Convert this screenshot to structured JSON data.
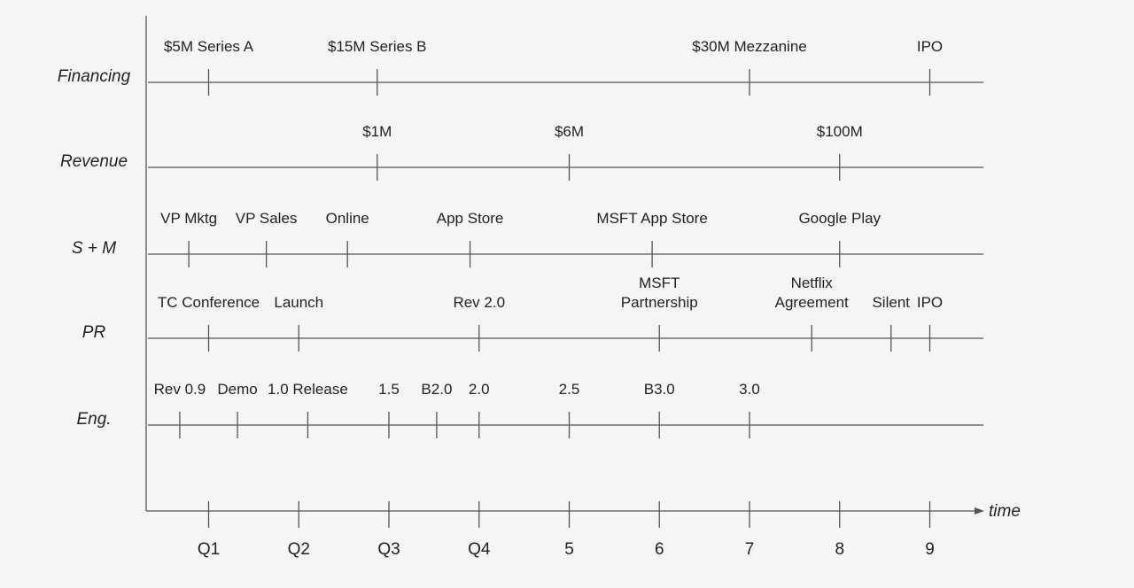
{
  "axis": {
    "title": "time",
    "ticks": [
      {
        "t": 1,
        "label": "Q1"
      },
      {
        "t": 2,
        "label": "Q2"
      },
      {
        "t": 3,
        "label": "Q3"
      },
      {
        "t": 4,
        "label": "Q4"
      },
      {
        "t": 5,
        "label": "5"
      },
      {
        "t": 6,
        "label": "6"
      },
      {
        "t": 7,
        "label": "7"
      },
      {
        "t": 8,
        "label": "8"
      },
      {
        "t": 9,
        "label": "9"
      }
    ]
  },
  "lanes": [
    {
      "id": "financing",
      "label": "Financing",
      "events": [
        {
          "t": 1.0,
          "lines": [
            "$5M Series A"
          ]
        },
        {
          "t": 2.87,
          "lines": [
            "$15M Series B"
          ]
        },
        {
          "t": 7.0,
          "lines": [
            "$30M Mezzanine"
          ]
        },
        {
          "t": 9.0,
          "lines": [
            "IPO"
          ]
        }
      ]
    },
    {
      "id": "revenue",
      "label": "Revenue",
      "events": [
        {
          "t": 2.87,
          "lines": [
            "$1M"
          ]
        },
        {
          "t": 5.0,
          "lines": [
            "$6M"
          ]
        },
        {
          "t": 8.0,
          "lines": [
            "$100M"
          ]
        }
      ]
    },
    {
      "id": "sm",
      "label": "S + M",
      "events": [
        {
          "t": 0.78,
          "lines": [
            "VP Mktg"
          ]
        },
        {
          "t": 1.64,
          "lines": [
            "VP Sales"
          ]
        },
        {
          "t": 2.54,
          "lines": [
            "Online"
          ]
        },
        {
          "t": 3.9,
          "lines": [
            "App Store"
          ]
        },
        {
          "t": 5.92,
          "lines": [
            "MSFT App Store"
          ]
        },
        {
          "t": 8.0,
          "lines": [
            "Google Play"
          ]
        }
      ]
    },
    {
      "id": "pr",
      "label": "PR",
      "events": [
        {
          "t": 1.0,
          "lines": [
            "TC Conference"
          ]
        },
        {
          "t": 2.0,
          "lines": [
            "Launch"
          ]
        },
        {
          "t": 4.0,
          "lines": [
            "Rev 2.0"
          ]
        },
        {
          "t": 6.0,
          "lines": [
            "MSFT",
            "Partnership"
          ]
        },
        {
          "t": 7.69,
          "lines": [
            "Netflix",
            "Agreement"
          ]
        },
        {
          "t": 8.57,
          "lines": [
            "Silent"
          ]
        },
        {
          "t": 9.0,
          "lines": [
            "IPO"
          ]
        }
      ]
    },
    {
      "id": "eng",
      "label": "Eng.",
      "events": [
        {
          "t": 0.68,
          "lines": [
            "Rev 0.9"
          ]
        },
        {
          "t": 1.32,
          "lines": [
            "Demo"
          ]
        },
        {
          "t": 2.1,
          "lines": [
            "1.0 Release"
          ]
        },
        {
          "t": 3.0,
          "lines": [
            "1.5"
          ]
        },
        {
          "t": 3.53,
          "lines": [
            "B2.0"
          ]
        },
        {
          "t": 4.0,
          "lines": [
            "2.0"
          ]
        },
        {
          "t": 5.0,
          "lines": [
            "2.5"
          ]
        },
        {
          "t": 6.0,
          "lines": [
            "B3.0"
          ]
        },
        {
          "t": 7.0,
          "lines": [
            "3.0"
          ]
        }
      ]
    }
  ]
}
